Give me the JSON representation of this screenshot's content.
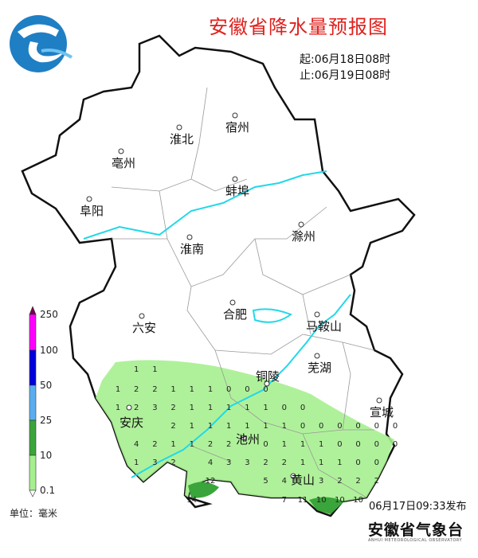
{
  "title": "安徽省降水量预报图",
  "period": {
    "start": "起:06月18日08时",
    "end": "止:06月19日08时"
  },
  "issued": "06月17日09:33发布",
  "organization": {
    "name": "安徽省气象台",
    "name_en": "ANHUI METEOROLOGICAL OBSERVATORY",
    "logo": "anhui-meteorological-logo"
  },
  "legend": {
    "unit": "单位：毫米",
    "ticks": [
      "250",
      "100",
      "50",
      "25",
      "10",
      "0.1"
    ],
    "colors": [
      "#ff00ff",
      "#0000dd",
      "#5aaef0",
      "#3aa53a",
      "#a6ef8f",
      "#ffffff"
    ],
    "cap_color": "#7a0050"
  },
  "cities": [
    "淮北",
    "宿州",
    "亳州",
    "蚌埠",
    "阜阳",
    "淮南",
    "滁州",
    "六安",
    "合肥",
    "马鞍山",
    "芜湖",
    "铜陵",
    "宣城",
    "安庆",
    "池州",
    "黄山"
  ],
  "colors": {
    "light_rain": "#a6ef8f",
    "moderate_rain": "#3aa53a",
    "river": "#22d8e8",
    "title": "#e0201c"
  },
  "grid_values": [
    [
      null,
      1,
      1
    ],
    [
      1,
      2,
      2,
      1,
      1,
      1,
      0,
      0,
      0
    ],
    [
      1,
      2,
      3,
      2,
      1,
      1,
      1,
      1,
      1,
      0,
      0
    ],
    [
      null,
      null,
      null,
      2,
      1,
      1,
      1,
      1,
      1,
      1,
      0,
      0,
      0,
      0,
      0,
      0
    ],
    [
      null,
      4,
      2,
      1,
      1,
      2,
      2,
      null,
      0,
      1,
      1,
      1,
      0,
      0,
      0,
      0
    ],
    [
      null,
      1,
      3,
      2,
      null,
      4,
      3,
      3,
      2,
      2,
      1,
      1,
      1,
      0,
      0
    ],
    [
      null,
      null,
      null,
      null,
      null,
      12,
      null,
      null,
      5,
      4,
      null,
      3,
      2,
      2,
      2
    ],
    [
      null,
      null,
      null,
      null,
      14,
      null,
      null,
      null,
      null,
      7,
      11,
      10,
      10,
      10
    ]
  ]
}
